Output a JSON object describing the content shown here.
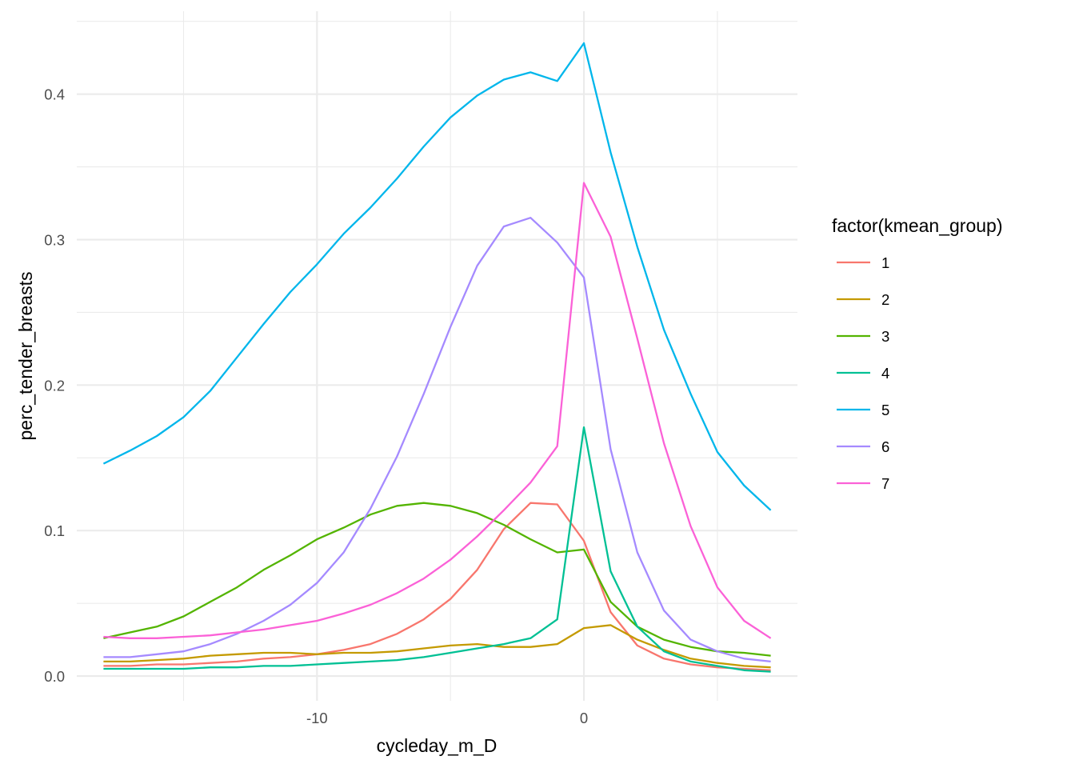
{
  "chart_data": {
    "type": "line",
    "title": "",
    "xlabel": "cycleday_m_D",
    "ylabel": "perc_tender_breasts",
    "xlim": [
      -19,
      8
    ],
    "ylim": [
      -0.017,
      0.457
    ],
    "x_ticks": [
      -10,
      0
    ],
    "y_ticks": [
      0.0,
      0.1,
      0.2,
      0.3,
      0.4
    ],
    "x_tick_labels": [
      "-10",
      "0"
    ],
    "y_tick_labels": [
      "0.0",
      "0.1",
      "0.2",
      "0.3",
      "0.4"
    ],
    "grid": true,
    "legend": {
      "title": "factor(kmean_group)",
      "position": "right"
    },
    "x": [
      -18,
      -17,
      -16,
      -15,
      -14,
      -13,
      -12,
      -11,
      -10,
      -9,
      -8,
      -7,
      -6,
      -5,
      -4,
      -3,
      -2,
      -1,
      0,
      1,
      2,
      3,
      4,
      5,
      6,
      7
    ],
    "series": [
      {
        "name": "1",
        "color": "#F8766D",
        "values": [
          0.007,
          0.007,
          0.008,
          0.008,
          0.009,
          0.01,
          0.012,
          0.013,
          0.015,
          0.018,
          0.022,
          0.029,
          0.039,
          0.053,
          0.073,
          0.101,
          0.119,
          0.118,
          0.093,
          0.044,
          0.021,
          0.012,
          0.008,
          0.006,
          0.005,
          0.004
        ]
      },
      {
        "name": "2",
        "color": "#C49A00",
        "values": [
          0.01,
          0.01,
          0.011,
          0.012,
          0.014,
          0.015,
          0.016,
          0.016,
          0.015,
          0.016,
          0.016,
          0.017,
          0.019,
          0.021,
          0.022,
          0.02,
          0.02,
          0.022,
          0.033,
          0.035,
          0.025,
          0.018,
          0.012,
          0.009,
          0.007,
          0.006
        ]
      },
      {
        "name": "3",
        "color": "#53B400",
        "values": [
          0.026,
          0.03,
          0.034,
          0.041,
          0.051,
          0.061,
          0.073,
          0.083,
          0.094,
          0.102,
          0.111,
          0.117,
          0.119,
          0.117,
          0.112,
          0.104,
          0.094,
          0.085,
          0.087,
          0.051,
          0.034,
          0.025,
          0.02,
          0.017,
          0.016,
          0.014
        ]
      },
      {
        "name": "4",
        "color": "#00C094",
        "values": [
          0.005,
          0.005,
          0.005,
          0.005,
          0.006,
          0.006,
          0.007,
          0.007,
          0.008,
          0.009,
          0.01,
          0.011,
          0.013,
          0.016,
          0.019,
          0.022,
          0.026,
          0.039,
          0.171,
          0.072,
          0.034,
          0.017,
          0.01,
          0.007,
          0.004,
          0.003
        ]
      },
      {
        "name": "5",
        "color": "#00B6EB",
        "values": [
          0.146,
          0.155,
          0.165,
          0.178,
          0.196,
          0.219,
          0.242,
          0.264,
          0.283,
          0.304,
          0.322,
          0.342,
          0.364,
          0.384,
          0.399,
          0.41,
          0.415,
          0.409,
          0.435,
          0.36,
          0.295,
          0.238,
          0.194,
          0.154,
          0.131,
          0.114
        ]
      },
      {
        "name": "6",
        "color": "#A58AFF",
        "values": [
          0.013,
          0.013,
          0.015,
          0.017,
          0.022,
          0.029,
          0.038,
          0.049,
          0.064,
          0.085,
          0.115,
          0.151,
          0.194,
          0.24,
          0.282,
          0.309,
          0.315,
          0.298,
          0.274,
          0.156,
          0.085,
          0.045,
          0.025,
          0.017,
          0.012,
          0.01
        ]
      },
      {
        "name": "7",
        "color": "#FB61D7",
        "values": [
          0.027,
          0.026,
          0.026,
          0.027,
          0.028,
          0.03,
          0.032,
          0.035,
          0.038,
          0.043,
          0.049,
          0.057,
          0.067,
          0.08,
          0.096,
          0.114,
          0.133,
          0.158,
          0.339,
          0.302,
          0.232,
          0.16,
          0.103,
          0.061,
          0.038,
          0.026
        ]
      }
    ]
  }
}
